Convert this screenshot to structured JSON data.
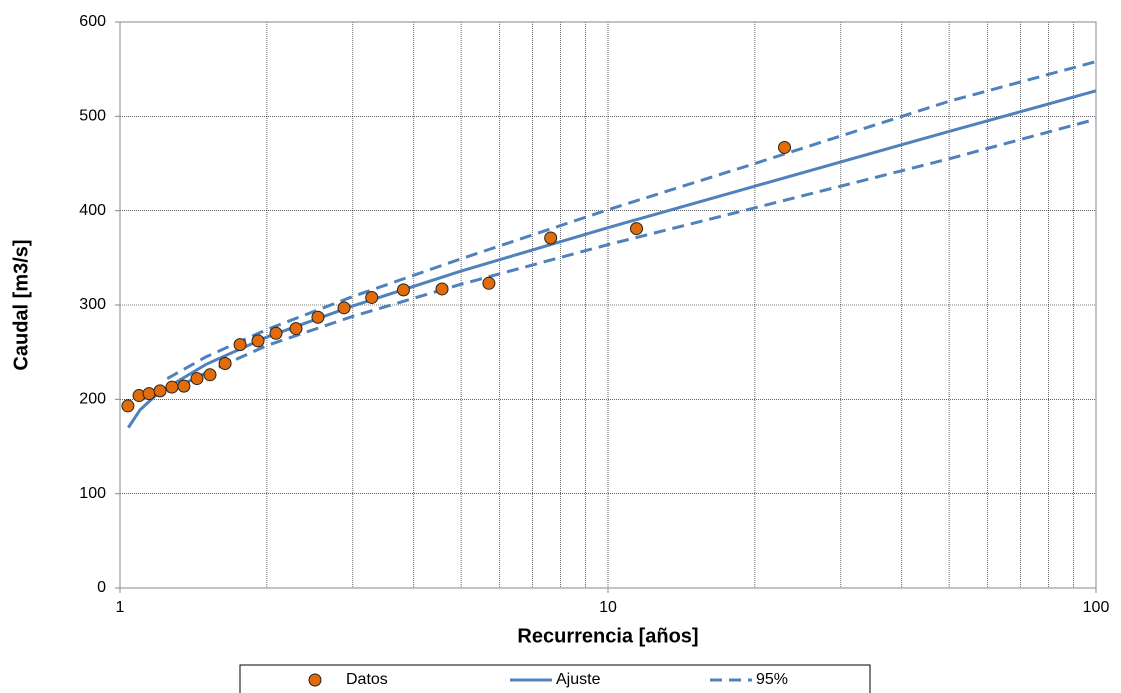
{
  "chart_data": {
    "type": "scatter",
    "x_label": "Recurrencia [años]",
    "y_label": "Caudal [m3/s]",
    "xlim": [
      1,
      100
    ],
    "xticks": [
      1,
      10,
      100
    ],
    "x_log": true,
    "ylim": [
      0,
      600
    ],
    "yticks": [
      0,
      100,
      200,
      300,
      400,
      500,
      600
    ],
    "grid": true,
    "legend": "bottom",
    "series": [
      {
        "name": "Datos",
        "style": "marker",
        "color": "#e36c0a",
        "x": [
          1.038,
          1.094,
          1.147,
          1.208,
          1.278,
          1.352,
          1.438,
          1.529,
          1.642,
          1.762,
          1.918,
          2.088,
          2.294,
          2.545,
          2.878,
          3.28,
          3.81,
          4.57,
          5.7,
          7.63,
          11.44,
          23.0
        ],
        "values": [
          193,
          204,
          206,
          209,
          213,
          214,
          222,
          226,
          238,
          258,
          262,
          270,
          275,
          287,
          297,
          308,
          316,
          317,
          323,
          371,
          381,
          467
        ]
      },
      {
        "name": "Ajuste",
        "style": "solid",
        "color": "#4f81bd",
        "x": [
          1.04,
          1.1,
          1.2,
          1.5,
          2,
          3,
          5,
          10,
          20,
          50,
          100
        ],
        "values": [
          170,
          189,
          207,
          237,
          266,
          299,
          336,
          382,
          426,
          484,
          527
        ]
      },
      {
        "name": "95%",
        "style": "dashed",
        "color": "#4f81bd",
        "x": [
          1.25,
          1.5,
          2,
          3,
          5,
          10,
          20,
          50,
          100
        ],
        "values": [
          222,
          245,
          274,
          309,
          349,
          401,
          450,
          516,
          558
        ],
        "lower": [
          208,
          228,
          257,
          288,
          322,
          364,
          403,
          455,
          497
        ]
      }
    ]
  }
}
